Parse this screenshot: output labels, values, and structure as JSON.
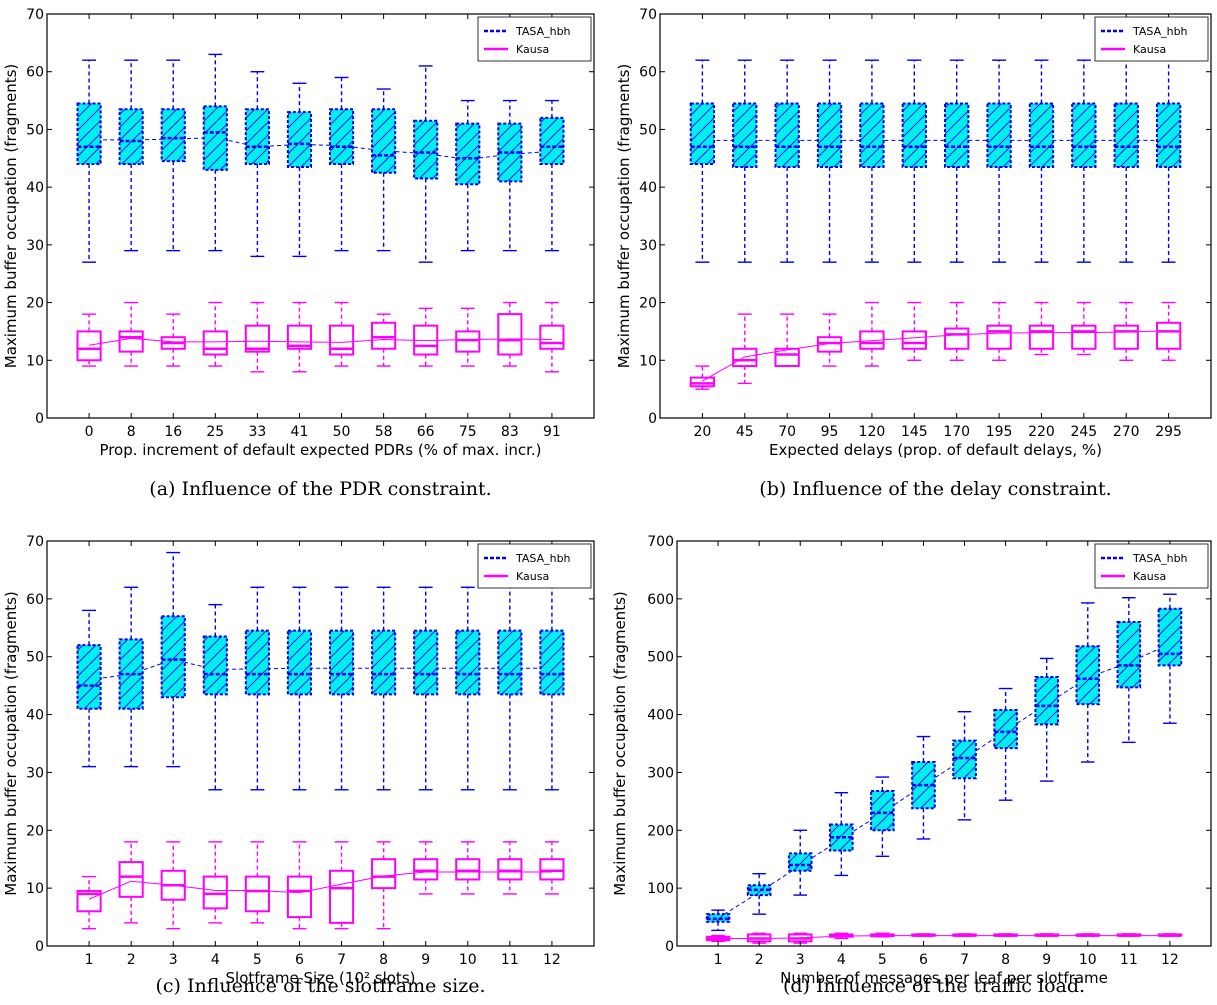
{
  "chart_data": [
    {
      "type": "box",
      "caption": "(a) Influence of the PDR constraint.",
      "xlabel": "Prop. increment of default expected PDRs (% of max. incr.)",
      "ylabel": "Maximum buffer occupation (fragments)",
      "ylim": [
        0,
        70
      ],
      "yticks": [
        "0",
        "10",
        "20",
        "30",
        "40",
        "50",
        "60",
        "70"
      ],
      "categories": [
        "0",
        "8",
        "16",
        "25",
        "33",
        "41",
        "50",
        "58",
        "66",
        "75",
        "83",
        "91"
      ],
      "legend": {
        "position": "top-right",
        "entries": [
          "TASA_hbh",
          "Kausa"
        ]
      },
      "series": [
        {
          "name": "TASA_hbh",
          "whisker_low": [
            27,
            29,
            29,
            29,
            28,
            28,
            29,
            29,
            27,
            29,
            29,
            29
          ],
          "q1": [
            44,
            44,
            44.5,
            43,
            44,
            43.5,
            44,
            42.5,
            41.5,
            40.5,
            41,
            44
          ],
          "median": [
            47,
            48,
            48.5,
            49.5,
            47,
            47.5,
            47,
            45.5,
            46,
            45,
            46,
            47
          ],
          "q3": [
            54.5,
            53.5,
            53.5,
            54,
            53.5,
            53,
            53.5,
            53.5,
            51.5,
            51,
            51,
            52
          ],
          "whisker_high": [
            62,
            62,
            62,
            63,
            60,
            58,
            59,
            57,
            61,
            55,
            55,
            55
          ],
          "mean": [
            48.2,
            48.2,
            48.3,
            48.6,
            47,
            47.4,
            47.2,
            46.3,
            45.8,
            44.8,
            45.7,
            46.2
          ]
        },
        {
          "name": "Kausa",
          "whisker_low": [
            9,
            9,
            9,
            9,
            8,
            8,
            9,
            9,
            9,
            9,
            9,
            8
          ],
          "q1": [
            10,
            11.5,
            12,
            11,
            11.5,
            12,
            11,
            12,
            11,
            11.5,
            11,
            12
          ],
          "median": [
            12,
            14,
            13,
            12,
            12,
            12.5,
            12,
            14,
            12.5,
            13.5,
            13.5,
            13
          ],
          "q3": [
            15,
            15,
            14,
            15,
            16,
            16,
            16,
            16.5,
            16,
            15,
            18,
            16
          ],
          "whisker_high": [
            18,
            20,
            18,
            20,
            20,
            20,
            20,
            18,
            19,
            19,
            20,
            20
          ],
          "mean": [
            12.6,
            13.8,
            13.2,
            13.2,
            13.3,
            13.2,
            13.1,
            13.6,
            13.4,
            13.6,
            13.7,
            13.6
          ]
        }
      ]
    },
    {
      "type": "box",
      "caption": "(b) Influence of the delay constraint.",
      "xlabel": "Expected delays (prop. of default delays, %)",
      "ylabel": "Maximum buffer occupation (fragments)",
      "ylim": [
        0,
        70
      ],
      "yticks": [
        "0",
        "10",
        "20",
        "30",
        "40",
        "50",
        "60",
        "70"
      ],
      "categories": [
        "20",
        "45",
        "70",
        "95",
        "120",
        "145",
        "170",
        "195",
        "220",
        "245",
        "270",
        "295"
      ],
      "legend": {
        "position": "top-right",
        "entries": [
          "TASA_hbh",
          "Kausa"
        ]
      },
      "series": [
        {
          "name": "TASA_hbh",
          "whisker_low": [
            27,
            27,
            27,
            27,
            27,
            27,
            27,
            27,
            27,
            27,
            27,
            27
          ],
          "q1": [
            44,
            43.5,
            43.5,
            43.5,
            43.5,
            43.5,
            43.5,
            43.5,
            43.5,
            43.5,
            43.5,
            43.5
          ],
          "median": [
            47,
            47,
            47,
            47,
            47,
            47,
            47,
            47,
            47,
            47,
            47,
            47
          ],
          "q3": [
            54.5,
            54.5,
            54.5,
            54.5,
            54.5,
            54.5,
            54.5,
            54.5,
            54.5,
            54.5,
            54.5,
            54.5
          ],
          "whisker_high": [
            62,
            62,
            62,
            62,
            62,
            62,
            62,
            62,
            62,
            62,
            62,
            62
          ],
          "mean": [
            48.1,
            48.1,
            48.1,
            48.1,
            48.1,
            48.1,
            48.1,
            48.1,
            48.1,
            48.1,
            48.1,
            48.1
          ]
        },
        {
          "name": "Kausa",
          "whisker_low": [
            5,
            6,
            9,
            9,
            9,
            10,
            10,
            10,
            11,
            11,
            10,
            10
          ],
          "q1": [
            5.5,
            9,
            9,
            11.5,
            12,
            12,
            12,
            12,
            12,
            12,
            12,
            12
          ],
          "median": [
            6,
            10,
            11,
            13,
            13,
            13,
            14.5,
            15,
            15,
            15,
            15,
            15
          ],
          "q3": [
            7,
            12,
            12,
            14,
            15,
            15,
            15.5,
            16,
            16,
            16,
            16,
            16.5
          ],
          "whisker_high": [
            9,
            18,
            18,
            18,
            20,
            20,
            20,
            20,
            20,
            20,
            20,
            20
          ],
          "mean": [
            6.4,
            10.6,
            11.8,
            12.9,
            13.4,
            13.9,
            14.4,
            14.7,
            14.8,
            14.8,
            14.9,
            15.1
          ]
        }
      ]
    },
    {
      "type": "box",
      "caption": "(c) Influence of the slotframe size.",
      "xlabel": "Slotframe Size (10² slots)",
      "ylabel": "Maximum buffer occupation (fragments)",
      "ylim": [
        0,
        70
      ],
      "yticks": [
        "0",
        "10",
        "20",
        "30",
        "40",
        "50",
        "60",
        "70"
      ],
      "categories": [
        "1",
        "2",
        "3",
        "4",
        "5",
        "6",
        "7",
        "8",
        "9",
        "10",
        "11",
        "12"
      ],
      "legend": {
        "position": "top-right",
        "entries": [
          "TASA_hbh",
          "Kausa"
        ]
      },
      "series": [
        {
          "name": "TASA_hbh",
          "whisker_low": [
            31,
            31,
            31,
            27,
            27,
            27,
            27,
            27,
            27,
            27,
            27,
            27
          ],
          "q1": [
            41,
            41,
            43,
            43.5,
            43.5,
            43.5,
            43.5,
            43.5,
            43.5,
            43.5,
            43.5,
            43.5
          ],
          "median": [
            45,
            47,
            49.5,
            47,
            47,
            47,
            47,
            47,
            47,
            47,
            47,
            47
          ],
          "q3": [
            52,
            53,
            57,
            53.5,
            54.5,
            54.5,
            54.5,
            54.5,
            54.5,
            54.5,
            54.5,
            54.5
          ],
          "whisker_high": [
            58,
            62,
            68,
            59,
            62,
            62,
            62,
            62,
            62,
            62,
            62,
            62
          ],
          "mean": [
            46,
            47,
            49.5,
            47.8,
            47.9,
            48,
            48,
            48,
            48,
            48,
            48,
            48
          ]
        },
        {
          "name": "Kausa",
          "whisker_low": [
            3,
            4,
            3,
            4,
            4,
            3,
            3,
            3,
            9,
            9,
            9,
            9
          ],
          "q1": [
            6,
            8.5,
            8,
            6.5,
            6,
            5,
            4,
            10,
            11.5,
            11.5,
            11.5,
            11.5
          ],
          "median": [
            9,
            12,
            10.5,
            9,
            9.5,
            9.5,
            10,
            12,
            13,
            13,
            13,
            13
          ],
          "q3": [
            9.5,
            14.5,
            13,
            12,
            12,
            12,
            13,
            15,
            15,
            15,
            15,
            15
          ],
          "whisker_high": [
            12,
            18,
            18,
            18,
            18,
            18,
            18,
            18,
            18,
            18,
            18,
            18
          ],
          "mean": [
            8.1,
            11.2,
            10.5,
            9.6,
            9.6,
            9.2,
            10.7,
            12.1,
            12.8,
            12.8,
            12.8,
            12.8
          ]
        }
      ]
    },
    {
      "type": "box",
      "caption": "(d) Influence of the traffic load.",
      "xlabel": "Number of messages per leaf per slotframe",
      "ylabel": "Maximum buffer occupation (fragments)",
      "ylim": [
        0,
        700
      ],
      "yticks": [
        "0",
        "100",
        "200",
        "300",
        "400",
        "500",
        "600",
        "700"
      ],
      "categories": [
        "1",
        "2",
        "3",
        "4",
        "5",
        "6",
        "7",
        "8",
        "9",
        "10",
        "11",
        "12"
      ],
      "legend": {
        "position": "top-right",
        "entries": [
          "TASA_hbh",
          "Kausa"
        ]
      },
      "series": [
        {
          "name": "TASA_hbh",
          "whisker_low": [
            27,
            55,
            88,
            122,
            155,
            185,
            218,
            252,
            285,
            318,
            352,
            385
          ],
          "q1": [
            42,
            88,
            130,
            165,
            200,
            238,
            290,
            342,
            383,
            418,
            447,
            485
          ],
          "median": [
            47,
            97,
            140,
            188,
            230,
            278,
            325,
            370,
            415,
            462,
            485,
            505
          ],
          "q3": [
            55,
            105,
            160,
            210,
            268,
            318,
            355,
            408,
            465,
            518,
            560,
            583
          ],
          "whisker_high": [
            62,
            125,
            200,
            265,
            292,
            362,
            405,
            445,
            497,
            593,
            602,
            608
          ],
          "mean": [
            48,
            93,
            139,
            185,
            230,
            278,
            324,
            372,
            418,
            464,
            490,
            522
          ]
        },
        {
          "name": "Kausa",
          "whisker_low": [
            8,
            5,
            5,
            13,
            16,
            17,
            17,
            17,
            17,
            17,
            17,
            17
          ],
          "q1": [
            10,
            8,
            8,
            16,
            17,
            18,
            18,
            18,
            18,
            18,
            18,
            18
          ],
          "median": [
            13,
            13,
            13,
            18,
            18,
            18,
            18,
            18,
            18,
            18,
            18,
            18
          ],
          "q3": [
            16,
            20,
            20,
            20,
            20,
            20,
            20,
            20,
            20,
            20,
            20,
            20
          ],
          "whisker_high": [
            18,
            22,
            22,
            22,
            22,
            21,
            21,
            21,
            21,
            21,
            21,
            21
          ],
          "mean": [
            13,
            13,
            14,
            17,
            18,
            18,
            18,
            18,
            18,
            18,
            18,
            18
          ]
        }
      ]
    }
  ],
  "colors": {
    "tasa_edge": "#0000ee",
    "tasa_fill": "#00eeee",
    "kausa_edge": "#ff00ff",
    "axis": "#000000"
  }
}
